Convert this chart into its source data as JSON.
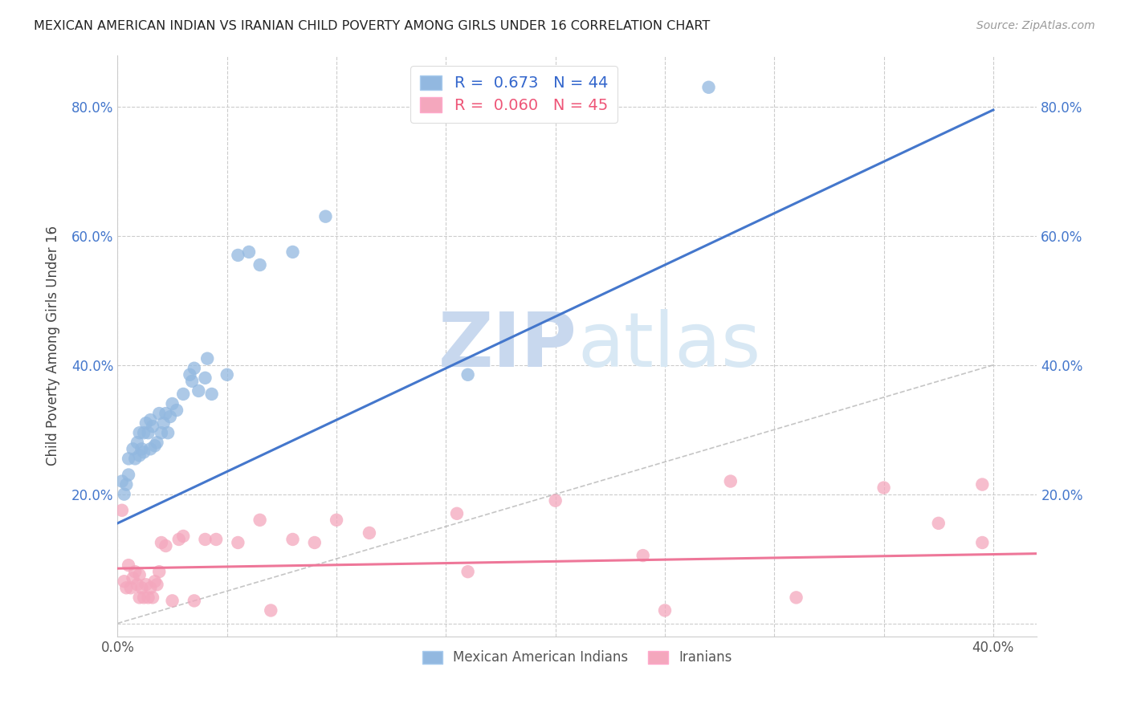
{
  "title": "MEXICAN AMERICAN INDIAN VS IRANIAN CHILD POVERTY AMONG GIRLS UNDER 16 CORRELATION CHART",
  "source": "Source: ZipAtlas.com",
  "ylabel": "Child Poverty Among Girls Under 16",
  "xlabel": "",
  "xlim": [
    0.0,
    0.42
  ],
  "ylim": [
    -0.02,
    0.88
  ],
  "xticks": [
    0.0,
    0.05,
    0.1,
    0.15,
    0.2,
    0.25,
    0.3,
    0.35,
    0.4
  ],
  "yticks": [
    0.0,
    0.2,
    0.4,
    0.6,
    0.8
  ],
  "blue_R": "0.673",
  "blue_N": "44",
  "pink_R": "0.060",
  "pink_N": "45",
  "blue_color": "#92B8E0",
  "pink_color": "#F4A7BD",
  "blue_line_color": "#4477CC",
  "pink_line_color": "#EE7799",
  "diagonal_color": "#BBBBBB",
  "background_color": "#FFFFFF",
  "watermark_zip": "ZIP",
  "watermark_atlas": "atlas",
  "blue_scatter": [
    [
      0.002,
      0.22
    ],
    [
      0.003,
      0.2
    ],
    [
      0.004,
      0.215
    ],
    [
      0.005,
      0.255
    ],
    [
      0.005,
      0.23
    ],
    [
      0.007,
      0.27
    ],
    [
      0.008,
      0.255
    ],
    [
      0.009,
      0.28
    ],
    [
      0.01,
      0.26
    ],
    [
      0.01,
      0.295
    ],
    [
      0.011,
      0.27
    ],
    [
      0.012,
      0.295
    ],
    [
      0.012,
      0.265
    ],
    [
      0.013,
      0.31
    ],
    [
      0.014,
      0.295
    ],
    [
      0.015,
      0.315
    ],
    [
      0.015,
      0.27
    ],
    [
      0.016,
      0.305
    ],
    [
      0.017,
      0.275
    ],
    [
      0.018,
      0.28
    ],
    [
      0.019,
      0.325
    ],
    [
      0.02,
      0.295
    ],
    [
      0.021,
      0.31
    ],
    [
      0.022,
      0.325
    ],
    [
      0.023,
      0.295
    ],
    [
      0.024,
      0.32
    ],
    [
      0.025,
      0.34
    ],
    [
      0.027,
      0.33
    ],
    [
      0.03,
      0.355
    ],
    [
      0.033,
      0.385
    ],
    [
      0.034,
      0.375
    ],
    [
      0.035,
      0.395
    ],
    [
      0.037,
      0.36
    ],
    [
      0.04,
      0.38
    ],
    [
      0.041,
      0.41
    ],
    [
      0.043,
      0.355
    ],
    [
      0.05,
      0.385
    ],
    [
      0.055,
      0.57
    ],
    [
      0.06,
      0.575
    ],
    [
      0.065,
      0.555
    ],
    [
      0.08,
      0.575
    ],
    [
      0.095,
      0.63
    ],
    [
      0.16,
      0.385
    ],
    [
      0.27,
      0.83
    ]
  ],
  "pink_scatter": [
    [
      0.002,
      0.175
    ],
    [
      0.003,
      0.065
    ],
    [
      0.004,
      0.055
    ],
    [
      0.005,
      0.09
    ],
    [
      0.006,
      0.055
    ],
    [
      0.007,
      0.07
    ],
    [
      0.008,
      0.08
    ],
    [
      0.009,
      0.06
    ],
    [
      0.01,
      0.04
    ],
    [
      0.01,
      0.075
    ],
    [
      0.011,
      0.055
    ],
    [
      0.012,
      0.04
    ],
    [
      0.013,
      0.06
    ],
    [
      0.014,
      0.04
    ],
    [
      0.015,
      0.055
    ],
    [
      0.016,
      0.04
    ],
    [
      0.017,
      0.065
    ],
    [
      0.018,
      0.06
    ],
    [
      0.019,
      0.08
    ],
    [
      0.02,
      0.125
    ],
    [
      0.022,
      0.12
    ],
    [
      0.025,
      0.035
    ],
    [
      0.028,
      0.13
    ],
    [
      0.03,
      0.135
    ],
    [
      0.035,
      0.035
    ],
    [
      0.04,
      0.13
    ],
    [
      0.045,
      0.13
    ],
    [
      0.055,
      0.125
    ],
    [
      0.065,
      0.16
    ],
    [
      0.07,
      0.02
    ],
    [
      0.08,
      0.13
    ],
    [
      0.09,
      0.125
    ],
    [
      0.1,
      0.16
    ],
    [
      0.115,
      0.14
    ],
    [
      0.155,
      0.17
    ],
    [
      0.16,
      0.08
    ],
    [
      0.2,
      0.19
    ],
    [
      0.24,
      0.105
    ],
    [
      0.25,
      0.02
    ],
    [
      0.28,
      0.22
    ],
    [
      0.31,
      0.04
    ],
    [
      0.35,
      0.21
    ],
    [
      0.375,
      0.155
    ],
    [
      0.395,
      0.125
    ],
    [
      0.395,
      0.215
    ]
  ],
  "blue_line": [
    0.0,
    0.155,
    0.4,
    0.795
  ],
  "pink_line": [
    0.0,
    0.085,
    0.42,
    0.108
  ],
  "diag_line": [
    0.0,
    0.0,
    0.4,
    0.4
  ]
}
